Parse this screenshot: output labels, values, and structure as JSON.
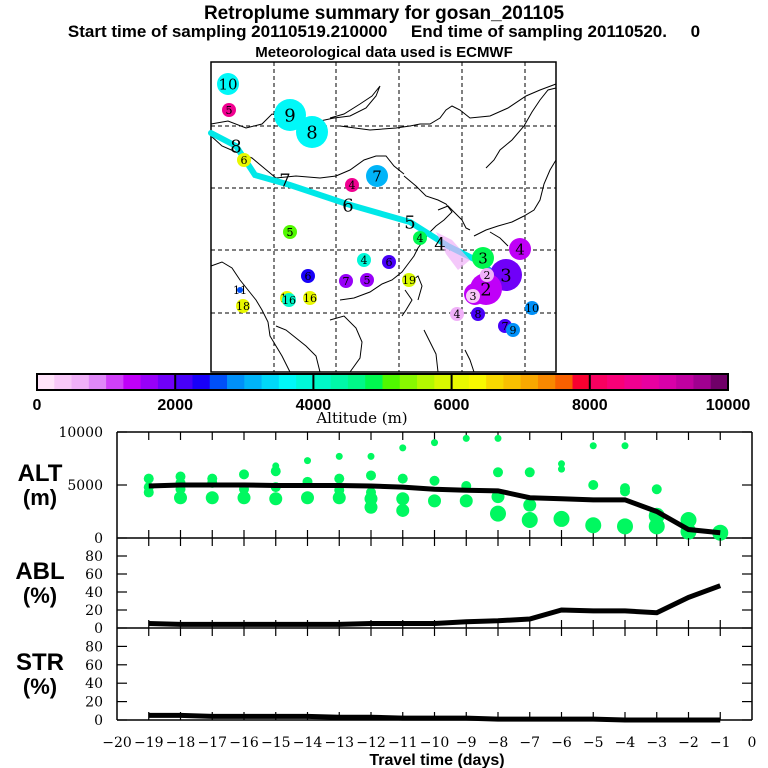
{
  "header": {
    "title": "Retroplume summary for gosan_201105",
    "subtitle": "Start time of sampling 20110519.210000     End time of sampling 20110520.     0",
    "met_line": "Meteorological data used is ECMWF"
  },
  "colorbar": {
    "label": "Altitude (m)",
    "range": [
      0,
      10000
    ],
    "tick_labels": [
      "0",
      "2000",
      "4000",
      "6000",
      "8000",
      "10000"
    ],
    "colors": [
      "#ffe4fa",
      "#f8c8f8",
      "#f0b0f8",
      "#e088f8",
      "#d040f8",
      "#c000f8",
      "#9800f8",
      "#7000f8",
      "#4800f8",
      "#1800f8",
      "#0050f8",
      "#0090f8",
      "#00b4f8",
      "#00d8f8",
      "#00f8f8",
      "#00f8d8",
      "#00f8c8",
      "#00f8a8",
      "#00f888",
      "#00f850",
      "#50f800",
      "#88f800",
      "#b4f800",
      "#d8f800",
      "#e8f800",
      "#f8f800",
      "#f8d800",
      "#f8c000",
      "#f8a800",
      "#f88800",
      "#f86000",
      "#f80030",
      "#f80060",
      "#f80078",
      "#f00090",
      "#e800a0",
      "#d800a8",
      "#c000a0",
      "#a00090",
      "#700068"
    ]
  },
  "map": {
    "plume_path_days": [
      "8",
      "7",
      "6",
      "5",
      "4",
      "3",
      "2",
      "1"
    ],
    "markers": [
      {
        "label": "10",
        "alt": 3600,
        "size": "medium"
      },
      {
        "label": "5",
        "alt": 8600,
        "size": "small"
      },
      {
        "label": "9",
        "alt": 3600,
        "size": "large"
      },
      {
        "label": "8",
        "alt": 3700,
        "size": "large"
      },
      {
        "label": "8",
        "alt": 4000,
        "size": "path"
      },
      {
        "label": "6",
        "alt": 6200,
        "size": "small"
      },
      {
        "label": "7",
        "alt": 4000,
        "size": "path"
      },
      {
        "label": "7",
        "alt": 3100,
        "size": "medium"
      },
      {
        "label": "4",
        "alt": 8600,
        "size": "small"
      },
      {
        "label": "6",
        "alt": 4000,
        "size": "path"
      },
      {
        "label": "5",
        "alt": 5200,
        "size": "small"
      },
      {
        "label": "5",
        "alt": 5000,
        "size": "tiny"
      },
      {
        "label": "5",
        "alt": 4000,
        "size": "path"
      },
      {
        "label": "4",
        "alt": 4800,
        "size": "small"
      },
      {
        "label": "4",
        "alt": 4000,
        "size": "path"
      },
      {
        "label": "4",
        "alt": 3800,
        "size": "small"
      },
      {
        "label": "6",
        "alt": 2100,
        "size": "small"
      },
      {
        "label": "6",
        "alt": 2300,
        "size": "small"
      },
      {
        "label": "7",
        "alt": 1500,
        "size": "small"
      },
      {
        "label": "5",
        "alt": 1500,
        "size": "small"
      },
      {
        "label": "3",
        "alt": 4900,
        "size": "medium"
      },
      {
        "label": "19",
        "alt": 5900,
        "size": "small"
      },
      {
        "label": "3",
        "alt": 1400,
        "size": "medium"
      },
      {
        "label": "4",
        "alt": 1300,
        "size": "medium"
      },
      {
        "label": "3",
        "alt": 1800,
        "size": "large"
      },
      {
        "label": "2",
        "alt": 1300,
        "size": "large"
      },
      {
        "label": "2",
        "alt": 700,
        "size": "small"
      },
      {
        "label": "3",
        "alt": 400,
        "size": "small"
      },
      {
        "label": "4",
        "alt": 600,
        "size": "small"
      },
      {
        "label": "8",
        "alt": 2100,
        "size": "small"
      },
      {
        "label": "10",
        "alt": 2900,
        "size": "small"
      },
      {
        "label": "7",
        "alt": 2200,
        "size": "small"
      },
      {
        "label": "9",
        "alt": 2800,
        "size": "small"
      },
      {
        "label": "11",
        "alt": 2600,
        "size": "tiny"
      },
      {
        "label": "18",
        "alt": 6000,
        "size": "small"
      },
      {
        "label": "15",
        "alt": 6000,
        "size": "small"
      },
      {
        "label": "16",
        "alt": 4100,
        "size": "small"
      },
      {
        "label": "16",
        "alt": 6000,
        "size": "small"
      }
    ]
  },
  "chart_data": [
    {
      "type": "scatter",
      "panel": "ALT",
      "ylabel": "ALT\n(m)",
      "ylim": [
        0,
        10000
      ],
      "yticks": [
        "0",
        "5000",
        "10000"
      ],
      "xlim": [
        -20,
        0
      ],
      "line_mean_altitude": {
        "x": [
          -19,
          -18,
          -17,
          -16,
          -15,
          -14,
          -13,
          -12,
          -11,
          -10,
          -9,
          -8,
          -7,
          -6,
          -5,
          -4,
          -3,
          -2,
          -1
        ],
        "y": [
          4900,
          5000,
          5000,
          5000,
          4950,
          4950,
          4950,
          4900,
          4800,
          4600,
          4500,
          4450,
          3800,
          3700,
          3600,
          3600,
          2500,
          800,
          500
        ]
      },
      "dots": [
        {
          "x": -19,
          "y": [
            5600,
            4800,
            4300
          ]
        },
        {
          "x": -18,
          "y": [
            5800,
            5200,
            4600,
            3800
          ]
        },
        {
          "x": -17,
          "y": [
            5600,
            5200,
            3800
          ]
        },
        {
          "x": -16,
          "y": [
            6000,
            4600,
            3800
          ]
        },
        {
          "x": -15,
          "y": [
            6800,
            6300,
            4800,
            3700
          ]
        },
        {
          "x": -14,
          "y": [
            7300,
            5300,
            3800
          ]
        },
        {
          "x": -13,
          "y": [
            7700,
            5600,
            4500,
            3800
          ]
        },
        {
          "x": -12,
          "y": [
            7700,
            5900,
            4300,
            3700,
            2900
          ]
        },
        {
          "x": -11,
          "y": [
            8500,
            5600,
            3700,
            2600
          ]
        },
        {
          "x": -10,
          "y": [
            9000,
            5400,
            3500
          ]
        },
        {
          "x": -9,
          "y": [
            9400,
            4900,
            3500
          ]
        },
        {
          "x": -8,
          "y": [
            9400,
            6200,
            3900,
            2300
          ]
        },
        {
          "x": -7,
          "y": [
            6200,
            3100,
            1700
          ]
        },
        {
          "x": -6,
          "y": [
            7000,
            6500,
            1800
          ]
        },
        {
          "x": -5,
          "y": [
            8700,
            5000,
            1200
          ]
        },
        {
          "x": -4,
          "y": [
            8700,
            4700,
            4400,
            1100
          ]
        },
        {
          "x": -3,
          "y": [
            4600,
            2100,
            1100
          ]
        },
        {
          "x": -2,
          "y": [
            1700,
            600
          ]
        },
        {
          "x": -1,
          "y": [
            500
          ]
        }
      ]
    },
    {
      "type": "line",
      "panel": "ABL",
      "ylabel": "ABL\n(%)",
      "ylim": [
        0,
        100
      ],
      "yticks": [
        "0",
        "20",
        "40",
        "60",
        "80"
      ],
      "x": [
        -19,
        -18,
        -17,
        -16,
        -15,
        -14,
        -13,
        -12,
        -11,
        -10,
        -9,
        -8,
        -7,
        -6,
        -5,
        -4,
        -3,
        -2,
        -1
      ],
      "y": [
        5,
        4,
        4,
        4,
        4,
        4,
        4,
        5,
        5,
        5,
        7,
        8,
        10,
        20,
        19,
        19,
        17,
        34,
        47
      ]
    },
    {
      "type": "line",
      "panel": "STR",
      "ylabel": "STR\n(%)",
      "ylim": [
        0,
        100
      ],
      "yticks": [
        "0",
        "20",
        "40",
        "60",
        "80"
      ],
      "x": [
        -19,
        -18,
        -17,
        -16,
        -15,
        -14,
        -13,
        -12,
        -11,
        -10,
        -9,
        -8,
        -7,
        -6,
        -5,
        -4,
        -3,
        -2,
        -1
      ],
      "y": [
        5,
        5,
        4,
        4,
        4,
        4,
        3,
        3,
        2,
        2,
        2,
        1,
        1,
        1,
        1,
        0,
        0,
        0,
        0
      ],
      "xlabel": "Travel time (days)",
      "xticks": [
        "-20",
        "-19",
        "-18",
        "-17",
        "-16",
        "-15",
        "-14",
        "-13",
        "-12",
        "-11",
        "-10",
        "-9",
        "-8",
        "-7",
        "-6",
        "-5",
        "-4",
        "-3",
        "-2",
        "-1",
        "0"
      ]
    }
  ]
}
